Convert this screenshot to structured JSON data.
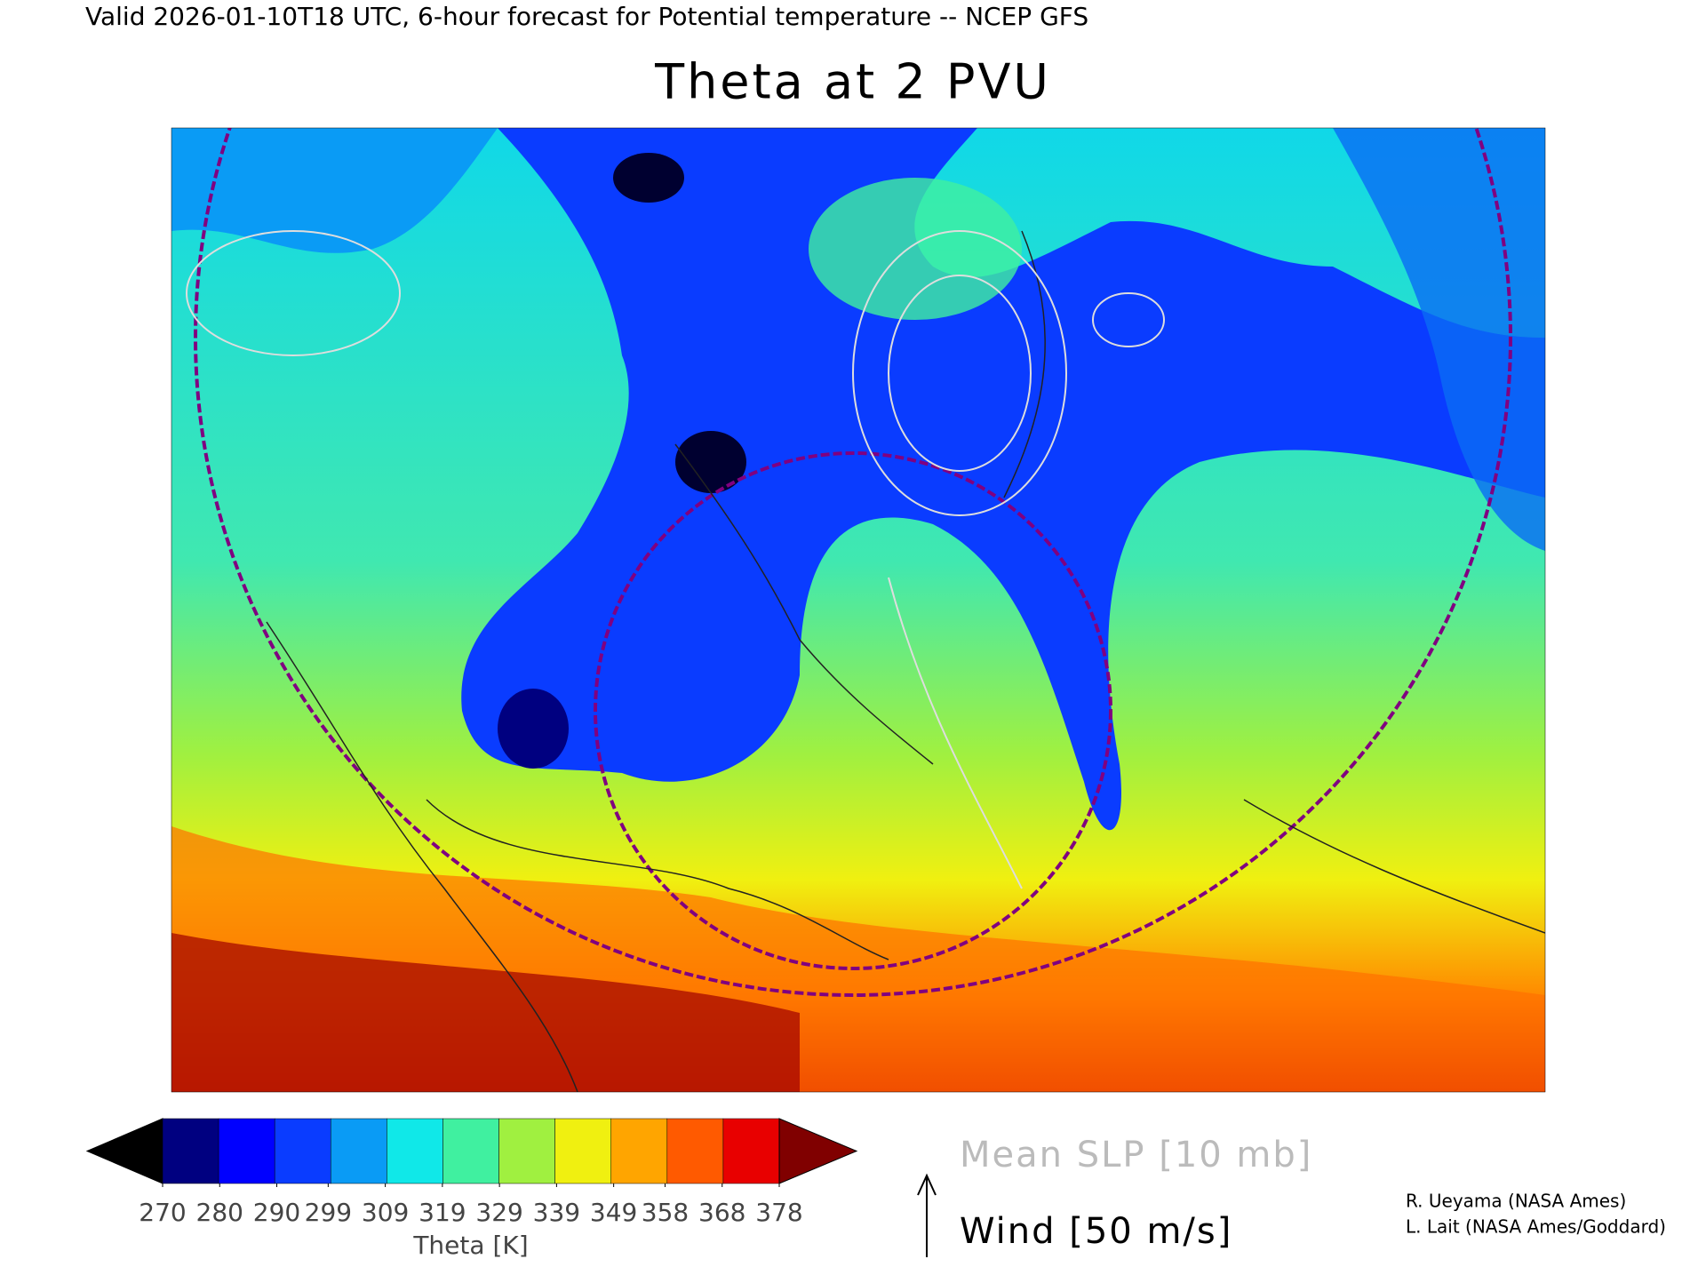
{
  "header": {
    "valid_line": "Valid 2026-01-10T18 UTC, 6-hour forecast for Potential temperature -- NCEP GFS",
    "title": "Theta at 2 PVU"
  },
  "colorbar": {
    "ticks": [
      270,
      280,
      290,
      299,
      309,
      319,
      329,
      339,
      349,
      358,
      368,
      378
    ],
    "colors": [
      "#000000",
      "#000080",
      "#0000ff",
      "#0a3cff",
      "#0a9bf5",
      "#10e8e8",
      "#40f0a0",
      "#a0f040",
      "#f0f010",
      "#ffa500",
      "#ff5a00",
      "#e80000",
      "#800000"
    ],
    "label": "Theta [K]"
  },
  "legend": {
    "slp": "Mean SLP [10 mb]",
    "wind": "Wind [50 m/s]"
  },
  "credits": [
    "R. Ueyama (NASA Ames)",
    "L. Lait (NASA Ames/Goddard)"
  ]
}
